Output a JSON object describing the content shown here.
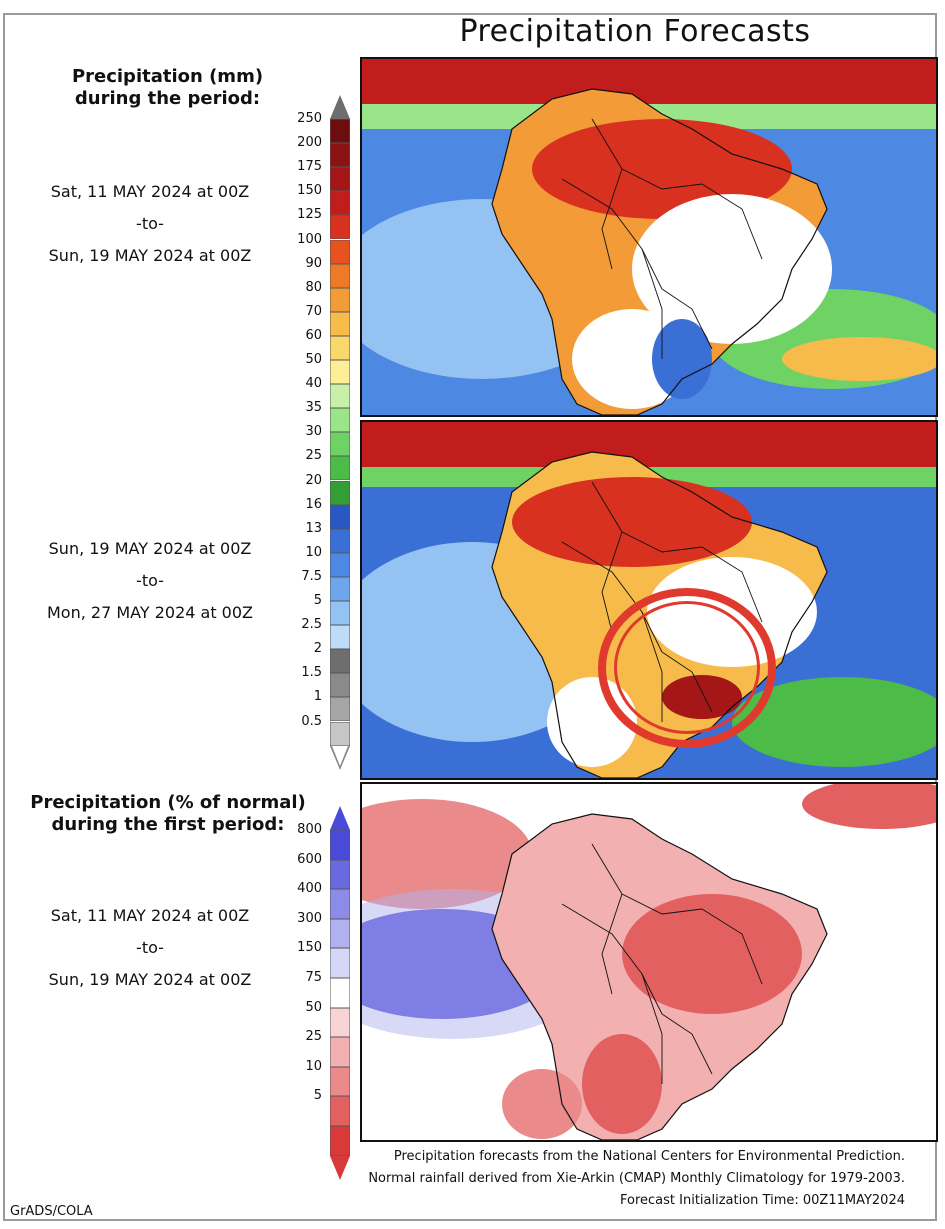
{
  "title": "Precipitation Forecasts",
  "precip_header": [
    "Precipitation (mm)",
    "during the period:"
  ],
  "period1": [
    "Sat, 11 MAY 2024 at 00Z",
    "-to-",
    "Sun, 19 MAY 2024 at 00Z"
  ],
  "period2": [
    "Sun, 19 MAY 2024 at 00Z",
    "-to-",
    "Mon, 27 MAY 2024 at 00Z"
  ],
  "pct_header": [
    "Precipitation (% of normal)",
    "during the first period:"
  ],
  "period3": [
    "Sat, 11 MAY 2024 at 00Z",
    "-to-",
    "Sun, 19 MAY 2024 at 00Z"
  ],
  "footer": [
    "Precipitation forecasts from the National Centers for Environmental Prediction.",
    "Normal rainfall derived from Xie-Arkin (CMAP) Monthly Climatology for 1979-2003.",
    "Forecast Initialization Time: 00Z11MAY2024"
  ],
  "credit": "GrADS/COLA",
  "chart_data": [
    {
      "type": "heatmap",
      "title": "Precipitation Forecasts",
      "legend_title": "Precipitation (mm) during the period:",
      "colorbar_ticks": [
        "250",
        "200",
        "175",
        "150",
        "125",
        "100",
        "90",
        "80",
        "70",
        "60",
        "50",
        "40",
        "35",
        "30",
        "25",
        "20",
        "16",
        "13",
        "10",
        "7.5",
        "5",
        "2.5",
        "2",
        "1.5",
        "1",
        "0.5"
      ],
      "colorbar_colors": [
        "#6e0d0d",
        "#8a1212",
        "#a51616",
        "#c21d1d",
        "#d8311f",
        "#e8521f",
        "#ee7a26",
        "#f39b36",
        "#f6bb4a",
        "#fad76b",
        "#fdee98",
        "#c9f0a8",
        "#9ae48a",
        "#6ed265",
        "#4cbb48",
        "#339e33",
        "#2958c2",
        "#3a6fd6",
        "#4d88e2",
        "#6ea6ec",
        "#94c2f3",
        "#bcdcf8",
        "#6e6e6e",
        "#8a8a8a",
        "#a6a6a6",
        "#c6c6c6"
      ],
      "panels": [
        {
          "period": "Sat, 11 MAY 2024 at 00Z -to- Sun, 19 MAY 2024 at 00Z"
        },
        {
          "period": "Sun, 19 MAY 2024 at 00Z -to- Mon, 27 MAY 2024 at 00Z"
        }
      ]
    },
    {
      "type": "heatmap",
      "legend_title": "Precipitation (% of normal) during the first period:",
      "colorbar_ticks": [
        "800",
        "600",
        "400",
        "300",
        "150",
        "75",
        "50",
        "25",
        "10",
        "5"
      ],
      "colorbar_colors": [
        "#4a4ad8",
        "#6a6ae0",
        "#8c8ce8",
        "#b2b2f0",
        "#d6d6f8",
        "#ffffff",
        "#f8d4d4",
        "#f2b0b0",
        "#ea8a8a",
        "#e26060",
        "#d83a3a"
      ],
      "panels": [
        {
          "period": "Sat, 11 MAY 2024 at 00Z -to- Sun, 19 MAY 2024 at 00Z"
        }
      ]
    }
  ],
  "colors": {
    "annotation_circle": "#e03a2e"
  }
}
